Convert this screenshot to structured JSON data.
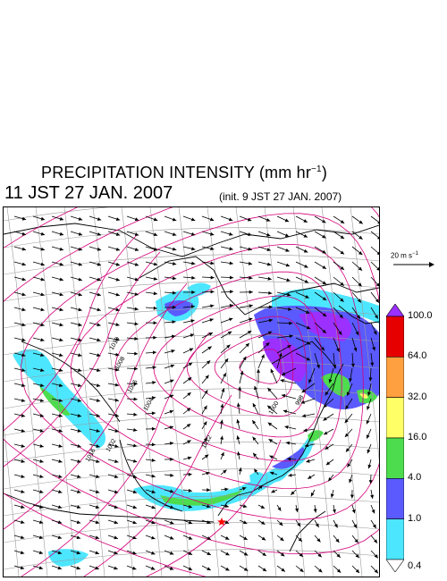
{
  "title": {
    "main": "PRECIPITATION INTENSITY (mm hr",
    "sup": "−1",
    "close": ")",
    "time": "11 JST 27 JAN. 2007",
    "init": "(init. 9 JST 27 JAN. 2007)"
  },
  "wind_scale": {
    "value": "20 m s",
    "sup": "−1"
  },
  "colorbar": {
    "levels": [
      "100.0",
      "64.0",
      "32.0",
      "16.0",
      "4.0",
      "1.0",
      "0.4"
    ],
    "colors": [
      "#9b30ff",
      "#e60000",
      "#ffa040",
      "#ffff66",
      "#4ddc4d",
      "#5a5aff",
      "#4de6ff",
      "#ffffff"
    ]
  },
  "map": {
    "isobar_labels": [
      "1010",
      "1008",
      "1006",
      "1004",
      "1002",
      "1000",
      "998",
      "1012",
      "1016"
    ],
    "colors": {
      "isobar": "#d4007a",
      "grid": "#9a9a9a",
      "coast": "#000000",
      "wind": "#000000"
    },
    "marker": {
      "icon": "star-icon",
      "color": "#ff0000"
    }
  }
}
